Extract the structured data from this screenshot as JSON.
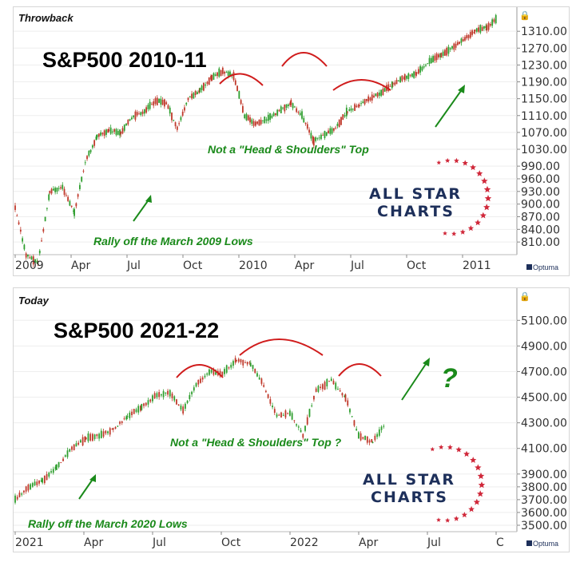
{
  "chart_data": [
    {
      "type": "candlestick",
      "panel_label": "Throwback",
      "title": "S&P500 2010-11",
      "y_tick_labels": [
        "1310.00",
        "1270.00",
        "1230.00",
        "1190.00",
        "1150.00",
        "1110.00",
        "1070.00",
        "1030.00",
        "990.00",
        "960.00",
        "930.00",
        "900.00",
        "870.00",
        "840.00",
        "810.00"
      ],
      "ylim": [
        780,
        1352
      ],
      "x_tick_labels": [
        "2009",
        "Apr",
        "Jul",
        "Oct",
        "2010",
        "Apr",
        "Jul",
        "Oct",
        "2011"
      ],
      "annotations": [
        "Not a \"Head & Shoulders\" Top",
        "Rally off the March 2009 Lows"
      ],
      "logo": {
        "line1": "ALL STAR",
        "line2": "CHARTS",
        "credit": "Optuma"
      },
      "series": [
        {
          "x_index": [
            0,
            12,
            25,
            38,
            52,
            65,
            77,
            90,
            103,
            116,
            130,
            142,
            154,
            166,
            178,
            190,
            203,
            216,
            228,
            240,
            252,
            264,
            276,
            290,
            303,
            315,
            328,
            340,
            352,
            365,
            378,
            390,
            402,
            415,
            428,
            441,
            455,
            468,
            480,
            492,
            505,
            518,
            530
          ],
          "close": [
            890,
            780,
            760,
            930,
            940,
            880,
            1000,
            1060,
            1075,
            1070,
            1110,
            1120,
            1145,
            1140,
            1080,
            1150,
            1170,
            1200,
            1215,
            1205,
            1110,
            1090,
            1100,
            1120,
            1140,
            1110,
            1050,
            1065,
            1080,
            1120,
            1135,
            1150,
            1165,
            1185,
            1200,
            1210,
            1240,
            1255,
            1270,
            1290,
            1310,
            1320,
            1340
          ]
        }
      ]
    },
    {
      "type": "candlestick",
      "panel_label": "Today",
      "title": "S&P500 2021-22",
      "y_tick_labels": [
        "5100.00",
        "4900.00",
        "4700.00",
        "4500.00",
        "4300.00",
        "4100.00",
        "3900.00",
        "3800.00",
        "3700.00",
        "3600.00",
        "3500.00"
      ],
      "ylim": [
        3450,
        5320
      ],
      "x_tick_labels": [
        "2021",
        "Apr",
        "Jul",
        "Oct",
        "2022",
        "Apr",
        "Jul",
        "C"
      ],
      "annotations": [
        "Not a \"Head & Shoulders\" Top ?",
        "Rally off the March 2020 Lows",
        "?"
      ],
      "logo": {
        "line1": "ALL STAR",
        "line2": "CHARTS",
        "credit": "Optuma"
      },
      "series": [
        {
          "x_index": [
            0,
            12,
            25,
            38,
            52,
            65,
            77,
            90,
            103,
            116,
            130,
            142,
            154,
            166,
            178,
            190,
            203,
            216,
            228,
            240,
            252,
            264,
            276,
            290,
            303,
            315,
            328,
            340
          ],
          "close": [
            3700,
            3800,
            3850,
            3950,
            4100,
            4180,
            4200,
            4250,
            4350,
            4420,
            4520,
            4530,
            4400,
            4600,
            4700,
            4680,
            4790,
            4760,
            4590,
            4350,
            4380,
            4200,
            4550,
            4630,
            4500,
            4200,
            4150,
            4300
          ]
        }
      ]
    }
  ]
}
